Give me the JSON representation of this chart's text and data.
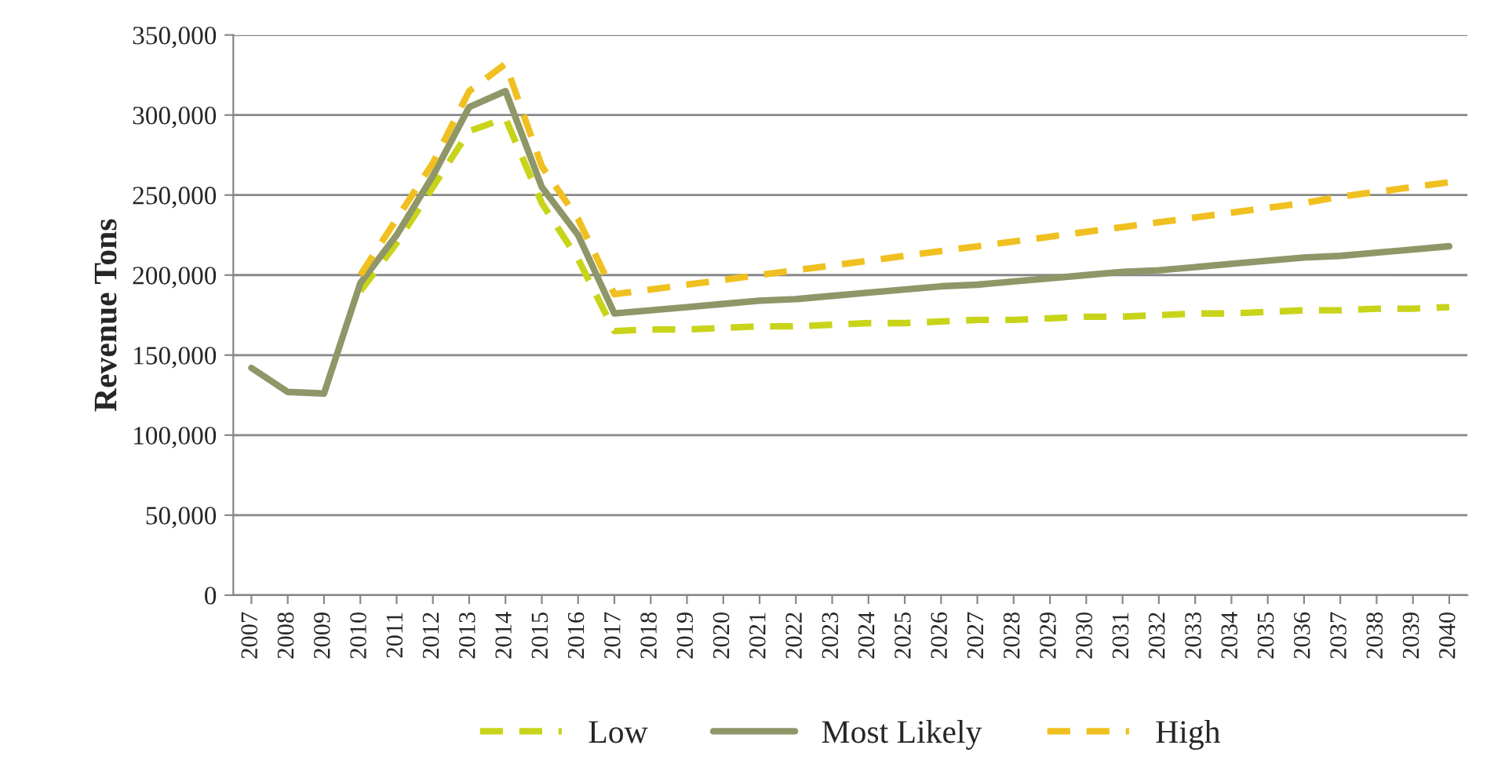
{
  "chart_data": {
    "type": "line",
    "ylabel": "Revenue Tons",
    "categories": [
      "2007",
      "2008",
      "2009",
      "2010",
      "2011",
      "2012",
      "2013",
      "2014",
      "2015",
      "2016",
      "2017",
      "2018",
      "2019",
      "2020",
      "2021",
      "2022",
      "2023",
      "2024",
      "2025",
      "2026",
      "2027",
      "2028",
      "2029",
      "2030",
      "2031",
      "2032",
      "2033",
      "2034",
      "2035",
      "2036",
      "2037",
      "2038",
      "2039",
      "2040"
    ],
    "series": [
      {
        "name": "Low",
        "color": "#c8d419",
        "line_style": "dashed",
        "values": [
          null,
          null,
          null,
          190000,
          220000,
          255000,
          290000,
          298000,
          245000,
          210000,
          165000,
          166000,
          166000,
          167000,
          168000,
          168000,
          169000,
          170000,
          170000,
          171000,
          172000,
          172000,
          173000,
          174000,
          174000,
          175000,
          176000,
          176000,
          177000,
          178000,
          178000,
          179000,
          179000,
          180000
        ]
      },
      {
        "name": "Most Likely",
        "color": "#8f9668",
        "line_style": "solid",
        "values": [
          142000,
          127000,
          126000,
          195000,
          225000,
          262000,
          305000,
          315000,
          255000,
          225000,
          176000,
          178000,
          180000,
          182000,
          184000,
          185000,
          187000,
          189000,
          191000,
          193000,
          194000,
          196000,
          198000,
          200000,
          202000,
          203000,
          205000,
          207000,
          209000,
          211000,
          212000,
          214000,
          216000,
          218000
        ]
      },
      {
        "name": "High",
        "color": "#f0c020",
        "line_style": "dashed",
        "values": [
          null,
          null,
          null,
          200000,
          235000,
          270000,
          315000,
          332000,
          268000,
          235000,
          188000,
          191000,
          194000,
          197000,
          200000,
          203000,
          206000,
          209000,
          212000,
          215000,
          218000,
          221000,
          224000,
          227000,
          230000,
          233000,
          236000,
          239000,
          242000,
          245000,
          249000,
          252000,
          255000,
          258000
        ]
      }
    ],
    "ylim": [
      0,
      350000
    ],
    "yticks": [
      {
        "value": 0,
        "label": "0"
      },
      {
        "value": 50000,
        "label": "50,000"
      },
      {
        "value": 100000,
        "label": "100,000"
      },
      {
        "value": 150000,
        "label": "150,000"
      },
      {
        "value": 200000,
        "label": "200,000"
      },
      {
        "value": 250000,
        "label": "250,000"
      },
      {
        "value": 300000,
        "label": "300,000"
      },
      {
        "value": 350000,
        "label": "350,000"
      }
    ],
    "grid": "y",
    "legend": "bottom",
    "marker": "none"
  }
}
